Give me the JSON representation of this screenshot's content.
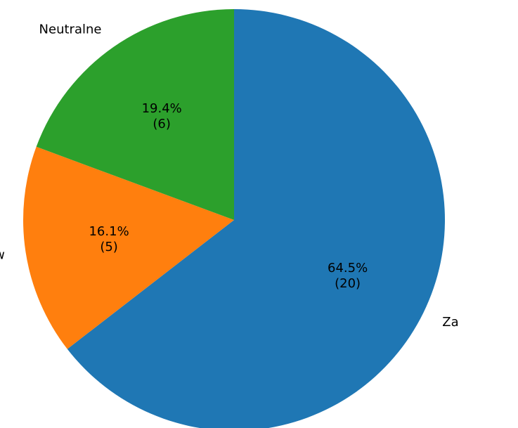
{
  "chart_data": {
    "type": "pie",
    "title": "",
    "slices": [
      {
        "label": "Za",
        "percent_label": "64.5%",
        "count_label": "(20)",
        "value": 20,
        "color": "#1f77b4"
      },
      {
        "label": "Przeciw",
        "percent_label": "16.1%",
        "count_label": "(5)",
        "value": 5,
        "color": "#ff7f0e"
      },
      {
        "label": "Neutralne",
        "percent_label": "19.4%",
        "count_label": "(6)",
        "value": 6,
        "color": "#2ca02c"
      }
    ],
    "total": 31,
    "start_angle_deg": 90,
    "direction": "clockwise"
  }
}
